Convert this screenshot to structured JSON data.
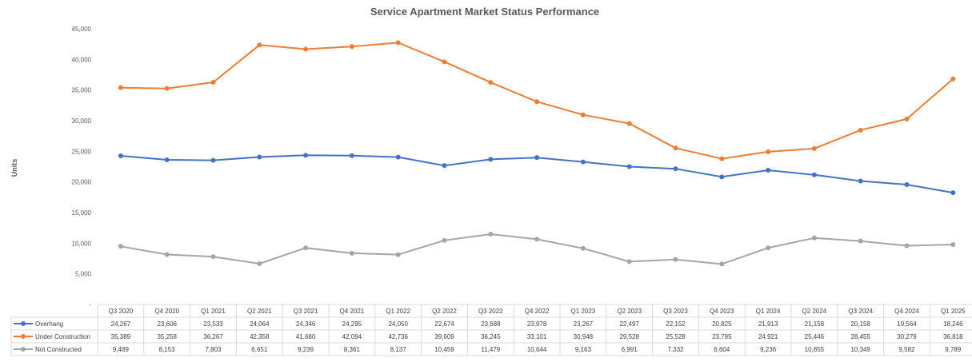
{
  "chart_data": {
    "type": "line",
    "title": "Service Apartment Market Status Performance",
    "ylabel": "Units",
    "ylim": [
      0,
      45000
    ],
    "ytick_labels": [
      "-",
      "5,000",
      "10,000",
      "15,000",
      "20,000",
      "25,000",
      "30,000",
      "35,000",
      "40,000",
      "45,000"
    ],
    "grid": false,
    "legend": "data-table",
    "categories": [
      "Q3 2020",
      "Q4 2020",
      "Q1 2021",
      "Q2 2021",
      "Q3 2021",
      "Q4 2021",
      "Q1 2022",
      "Q2 2022",
      "Q3 2022",
      "Q4 2022",
      "Q1 2023",
      "Q2 2023",
      "Q3 2023",
      "Q4 2023",
      "Q1 2024",
      "Q2 2024",
      "Q3 2024",
      "Q4 2024",
      "Q1 2025"
    ],
    "series": [
      {
        "name": "Overhang",
        "color": "#4472C4",
        "values": [
          24267,
          23606,
          23533,
          24064,
          24346,
          24295,
          24050,
          22674,
          23688,
          23978,
          23267,
          22497,
          22152,
          20825,
          21913,
          21158,
          20158,
          19564,
          18246
        ],
        "labels": [
          "24,267",
          "23,606",
          "23,533",
          "24,064",
          "24,346",
          "24,295",
          "24,050",
          "22,674",
          "23,688",
          "23,978",
          "23,267",
          "22,497",
          "22,152",
          "20,825",
          "21,913",
          "21,158",
          "20,158",
          "19,564",
          "18,246"
        ]
      },
      {
        "name": "Under Construction",
        "color": "#ED7D31",
        "values": [
          35389,
          35258,
          36267,
          42358,
          41680,
          42094,
          42736,
          39609,
          36245,
          33101,
          30948,
          29528,
          25528,
          23795,
          24921,
          25446,
          28455,
          30279,
          36818
        ],
        "labels": [
          "35,389",
          "35,258",
          "36,267",
          "42,358",
          "41,680",
          "42,094",
          "42,736",
          "39,609",
          "36,245",
          "33,101",
          "30,948",
          "29,528",
          "25,528",
          "23,795",
          "24,921",
          "25,446",
          "28,455",
          "30,279",
          "36,818"
        ]
      },
      {
        "name": "Not Constructed",
        "color": "#A5A5A5",
        "values": [
          9489,
          8153,
          7803,
          6651,
          9239,
          8361,
          8137,
          10459,
          11479,
          10644,
          9163,
          6991,
          7332,
          6604,
          9236,
          10855,
          10349,
          9582,
          9789
        ],
        "labels": [
          "9,489",
          "8,153",
          "7,803",
          "6,651",
          "9,239",
          "8,361",
          "8,137",
          "10,459",
          "11,479",
          "10,644",
          "9,163",
          "6,991",
          "7,332",
          "6,604",
          "9,236",
          "10,855",
          "10,349",
          "9,582",
          "9,789"
        ]
      }
    ]
  }
}
